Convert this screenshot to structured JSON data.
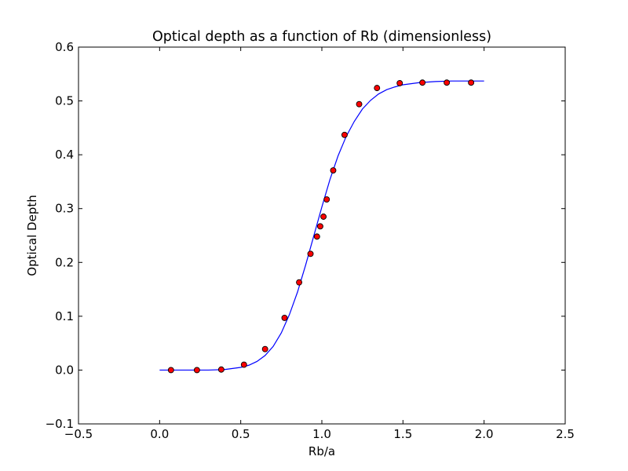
{
  "chart_data": {
    "type": "scatter",
    "title": "Optical depth as a function of Rb (dimensionless)",
    "xlabel": "Rb/a",
    "ylabel": "Optical Depth",
    "xlim": [
      -0.5,
      2.5
    ],
    "ylim": [
      -0.1,
      0.6
    ],
    "xticks": [
      -0.5,
      0.0,
      0.5,
      1.0,
      1.5,
      2.0,
      2.5
    ],
    "xtick_labels": [
      "−0.5",
      "0.0",
      "0.5",
      "1.0",
      "1.5",
      "2.0",
      "2.5"
    ],
    "yticks": [
      -0.1,
      0.0,
      0.1,
      0.2,
      0.3,
      0.4,
      0.5,
      0.6
    ],
    "ytick_labels": [
      "−0.1",
      "0.0",
      "0.1",
      "0.2",
      "0.3",
      "0.4",
      "0.5",
      "0.6"
    ],
    "grid": false,
    "series": [
      {
        "kind": "points",
        "color": "#ff0000",
        "edge_color": "#000000",
        "x": [
          0.07,
          0.23,
          0.38,
          0.52,
          0.65,
          0.77,
          0.86,
          0.93,
          0.97,
          0.99,
          1.01,
          1.03,
          1.07,
          1.14,
          1.23,
          1.34,
          1.48,
          1.62,
          1.77,
          1.92
        ],
        "y": [
          0.0,
          0.0,
          0.001,
          0.01,
          0.039,
          0.097,
          0.163,
          0.216,
          0.248,
          0.267,
          0.285,
          0.317,
          0.371,
          0.437,
          0.494,
          0.524,
          0.533,
          0.534,
          0.534,
          0.534
        ]
      },
      {
        "kind": "curve",
        "color": "#0000ff",
        "x": [
          0.0,
          0.1,
          0.2,
          0.3,
          0.4,
          0.5,
          0.55,
          0.6,
          0.65,
          0.7,
          0.75,
          0.8,
          0.85,
          0.9,
          0.95,
          1.0,
          1.05,
          1.1,
          1.15,
          1.2,
          1.25,
          1.3,
          1.35,
          1.4,
          1.45,
          1.5,
          1.6,
          1.7,
          1.8,
          1.9,
          2.0
        ],
        "y": [
          0.0,
          0.0,
          0.0,
          0.0,
          0.001,
          0.005,
          0.009,
          0.016,
          0.027,
          0.044,
          0.069,
          0.103,
          0.145,
          0.195,
          0.249,
          0.303,
          0.354,
          0.398,
          0.434,
          0.462,
          0.485,
          0.501,
          0.513,
          0.521,
          0.526,
          0.53,
          0.534,
          0.536,
          0.537,
          0.537,
          0.537
        ]
      }
    ]
  }
}
